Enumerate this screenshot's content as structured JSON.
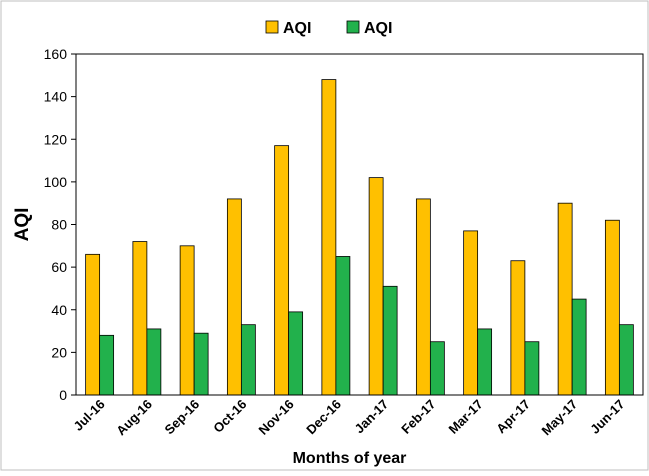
{
  "chart_data": {
    "type": "bar",
    "title": "",
    "xlabel": "Months of year",
    "ylabel": "AQI",
    "ylim": [
      0,
      160
    ],
    "yticks": [
      0,
      20,
      40,
      60,
      80,
      100,
      120,
      140,
      160
    ],
    "grid": false,
    "legend_position": "top-center",
    "categories": [
      "Jul-16",
      "Aug-16",
      "Sep-16",
      "Oct-16",
      "Nov-16",
      "Dec-16",
      "Jan-17",
      "Feb-17",
      "Mar-17",
      "Apr-17",
      "May-17",
      "Jun-17"
    ],
    "series": [
      {
        "name": "AQI",
        "color": "#FFC000",
        "values": [
          66,
          72,
          70,
          92,
          117,
          148,
          102,
          92,
          77,
          63,
          90,
          82
        ]
      },
      {
        "name": "AQI",
        "color": "#22B14C",
        "values": [
          28,
          31,
          29,
          33,
          39,
          65,
          51,
          25,
          31,
          25,
          45,
          33
        ]
      }
    ]
  }
}
